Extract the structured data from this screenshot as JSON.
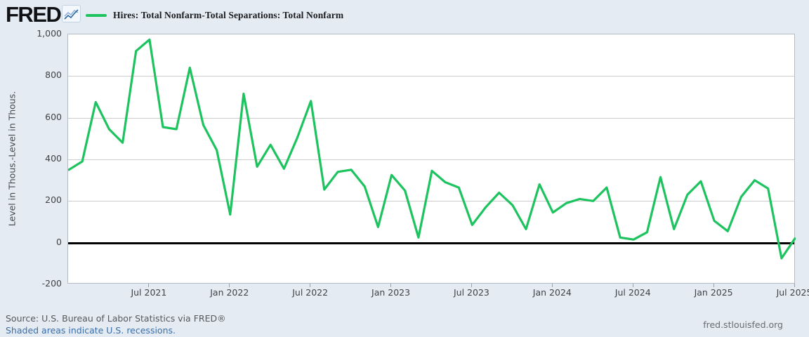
{
  "header": {
    "logo_text": "FRED",
    "legend_label": "Hires: Total Nonfarm-Total Separations: Total Nonfarm"
  },
  "footer": {
    "source_line": "Source: U.S. Bureau of Labor Statistics via FRED®",
    "recession_note": "Shaded areas indicate U.S. recessions.",
    "site_link": "fred.stlouisfed.org"
  },
  "colors": {
    "series_green": "#1dc35e",
    "background": "#e4ebf2",
    "zero_line": "#000000",
    "gridline": "#cccccc",
    "link_blue": "#3a6ea8"
  },
  "chart_data": {
    "type": "line",
    "title": "Hires: Total Nonfarm-Total Separations: Total Nonfarm",
    "ylabel": "Level in Thous.-Level in Thous.",
    "ylim": [
      -200,
      1000
    ],
    "grid": true,
    "legend_position": "top-left",
    "y_ticks": [
      {
        "label": "1,000",
        "value": 1000
      },
      {
        "label": "800",
        "value": 800
      },
      {
        "label": "600",
        "value": 600
      },
      {
        "label": "400",
        "value": 400
      },
      {
        "label": "200",
        "value": 200
      },
      {
        "label": "0",
        "value": 0
      },
      {
        "label": "-200",
        "value": -200
      }
    ],
    "x_ticks": [
      {
        "label": "Jul 2021",
        "month_index": 6
      },
      {
        "label": "Jan 2022",
        "month_index": 12
      },
      {
        "label": "Jul 2022",
        "month_index": 18
      },
      {
        "label": "Jan 2023",
        "month_index": 24
      },
      {
        "label": "Jul 2023",
        "month_index": 30
      },
      {
        "label": "Jan 2024",
        "month_index": 36
      },
      {
        "label": "Jul 2024",
        "month_index": 42
      },
      {
        "label": "Jan 2025",
        "month_index": 48
      },
      {
        "label": "Jul 2025",
        "month_index": 54
      }
    ],
    "months": [
      "2021-01",
      "2021-02",
      "2021-03",
      "2021-04",
      "2021-05",
      "2021-06",
      "2021-07",
      "2021-08",
      "2021-09",
      "2021-10",
      "2021-11",
      "2021-12",
      "2022-01",
      "2022-02",
      "2022-03",
      "2022-04",
      "2022-05",
      "2022-06",
      "2022-07",
      "2022-08",
      "2022-09",
      "2022-10",
      "2022-11",
      "2022-12",
      "2023-01",
      "2023-02",
      "2023-03",
      "2023-04",
      "2023-05",
      "2023-06",
      "2023-07",
      "2023-08",
      "2023-09",
      "2023-10",
      "2023-11",
      "2023-12",
      "2024-01",
      "2024-02",
      "2024-03",
      "2024-04",
      "2024-05",
      "2024-06",
      "2024-07",
      "2024-08",
      "2024-09",
      "2024-10",
      "2024-11",
      "2024-12",
      "2025-01",
      "2025-02",
      "2025-03",
      "2025-04",
      "2025-05",
      "2025-06",
      "2025-07"
    ],
    "series": [
      {
        "name": "Hires: Total Nonfarm-Total Separations: Total Nonfarm",
        "color": "#1dc35e",
        "values": [
          350,
          390,
          675,
          545,
          480,
          920,
          975,
          555,
          545,
          840,
          565,
          445,
          135,
          715,
          365,
          470,
          355,
          505,
          680,
          255,
          340,
          350,
          270,
          75,
          325,
          250,
          25,
          345,
          290,
          265,
          85,
          170,
          240,
          180,
          65,
          280,
          145,
          190,
          210,
          200,
          265,
          25,
          15,
          50,
          315,
          65,
          230,
          295,
          105,
          55,
          220,
          300,
          260,
          -75,
          20
        ]
      }
    ]
  }
}
